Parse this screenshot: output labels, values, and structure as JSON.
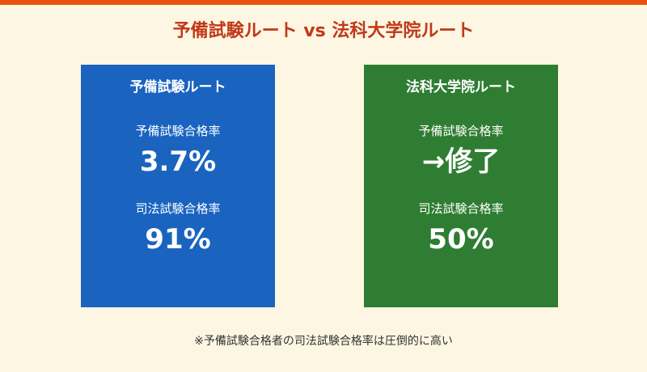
{
  "title": "予備試験ルート vs 法科大学院ルート",
  "cards": {
    "prep": {
      "heading": "予備試験ルート",
      "stat1_label": "予備試験合格率",
      "stat1_value": "3.7%",
      "stat2_label": "司法試験合格率",
      "stat2_value": "91%"
    },
    "law": {
      "heading": "法科大学院ルート",
      "stat1_label": "予備試験合格率",
      "stat1_value": "→修了",
      "stat2_label": "司法試験合格率",
      "stat2_value": "50%"
    }
  },
  "footnote": "※予備試験合格者の司法試験合格率は圧倒的に高い",
  "colors": {
    "background": "#fdf6e2",
    "accent_bar": "#e8500f",
    "title": "#c0391a",
    "prep_card": "#1a64c0",
    "law_card": "#2f7d32"
  }
}
